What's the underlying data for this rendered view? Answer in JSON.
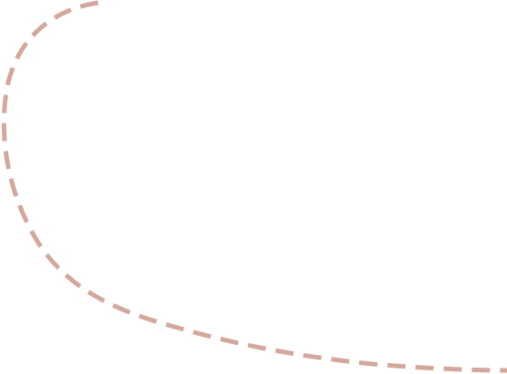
{
  "decoration": {
    "curve_color": "#d4a79c",
    "curve_style": "dashed"
  }
}
